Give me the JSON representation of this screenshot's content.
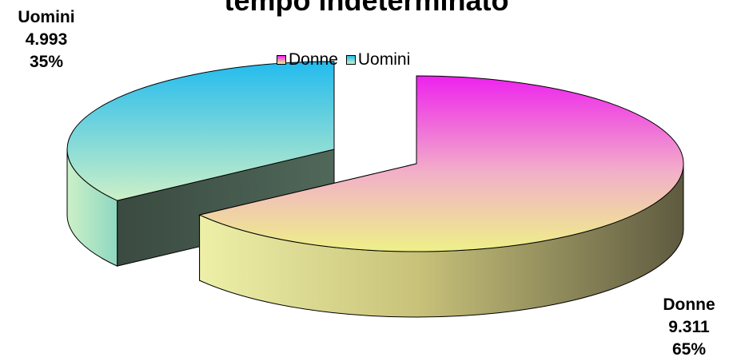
{
  "chart_data": {
    "type": "pie",
    "title": "tempo indeterminato",
    "legend_position": "top",
    "categories": [
      "Donne",
      "Uomini"
    ],
    "values": [
      9311,
      4993
    ],
    "value_labels": [
      "9.311",
      "4.993"
    ],
    "percent_labels": [
      "65%",
      "35%"
    ],
    "colors": {
      "Donne": {
        "top": "#ee22ee",
        "bottom": "#eef088",
        "side_dark": "#5e5a40"
      },
      "Uomini": {
        "top": "#22bbee",
        "bottom": "#ccf0c8",
        "side_dark": "#445a50"
      }
    }
  }
}
